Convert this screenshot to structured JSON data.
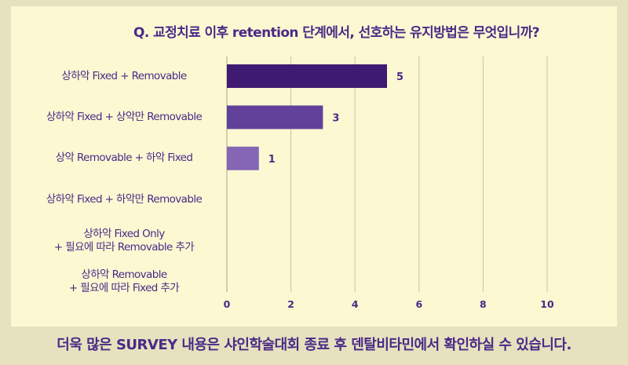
{
  "chart_data": {
    "type": "bar",
    "orientation": "horizontal",
    "title": "Q. 교정치료 이후 retention 단계에서, 선호하는 유지방법은 무엇입니까?",
    "categories": [
      "상하악 Fixed + Removable",
      "상하악 Fixed + 상악만 Removable",
      "상악 Removable + 하악 Fixed",
      "상하악 Fixed + 하악만 Removable",
      "상하악 Fixed Only\n+ 필요에 따라 Removable 추가",
      "상하악 Removable\n+ 필요에 따라 Fixed 추가"
    ],
    "values": [
      5,
      3,
      1,
      0,
      0,
      0
    ],
    "data_labels": [
      "5",
      "3",
      "1",
      "",
      "",
      ""
    ],
    "xlim": [
      0,
      10
    ],
    "xticks": [
      "0",
      "2",
      "4",
      "6",
      "8",
      "10"
    ],
    "grid": true,
    "colors": [
      "#3f1a72",
      "#62419a",
      "#8466b5"
    ]
  },
  "footer": {
    "text": "더욱 많은 SURVEY 내용은 샤인학술대회 종료 후  덴탈비타민에서 확인하실 수 있습니다."
  },
  "colors": {
    "background": "#e6e2bf",
    "card": "#fbf8d2",
    "accent": "#4b2a86"
  }
}
